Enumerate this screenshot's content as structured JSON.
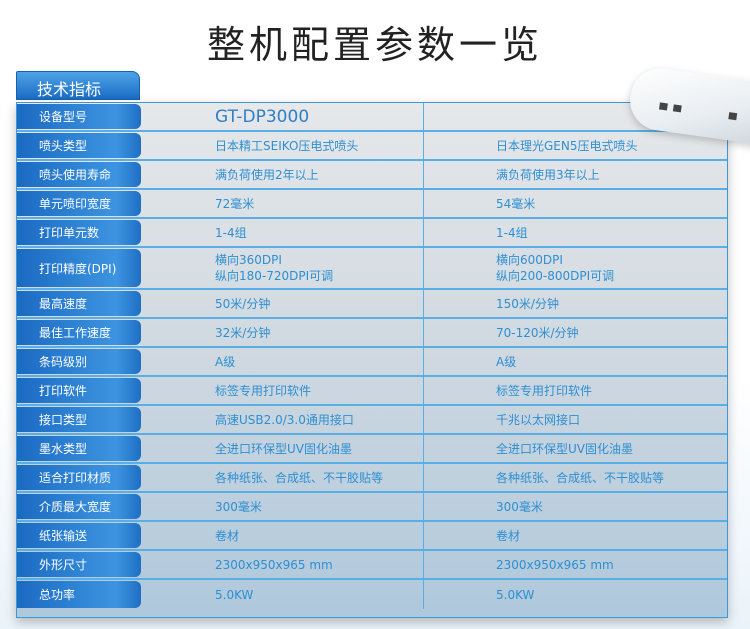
{
  "title": "整机配置参数一览",
  "header": "技术指标",
  "rows": [
    {
      "label": "设备型号",
      "c1": "GT-DP3000",
      "c2": ""
    },
    {
      "label": "喷头类型",
      "c1": "日本精工SEIKO压电式喷头",
      "c2": "日本理光GEN5压电式喷头"
    },
    {
      "label": "喷头使用寿命",
      "c1": "满负荷使用2年以上",
      "c2": "满负荷使用3年以上"
    },
    {
      "label": "单元喷印宽度",
      "c1": "72毫米",
      "c2": "54毫米"
    },
    {
      "label": "打印单元数",
      "c1": "1-4组",
      "c2": "1-4组"
    },
    {
      "label": "打印精度(DPI)",
      "c1": "横向360DPI",
      "c1b": "纵向180-720DPI可调",
      "c2": "横向600DPI",
      "c2b": "纵向200-800DPI可调"
    },
    {
      "label": "最高速度",
      "c1": "50米/分钟",
      "c2": "150米/分钟"
    },
    {
      "label": "最佳工作速度",
      "c1": "32米/分钟",
      "c2": "70-120米/分钟"
    },
    {
      "label": "条码级别",
      "c1": "A级",
      "c2": "A级"
    },
    {
      "label": "打印软件",
      "c1": "标签专用打印软件",
      "c2": "标签专用打印软件"
    },
    {
      "label": "接口类型",
      "c1": "高速USB2.0/3.0通用接口",
      "c2": "千兆以太网接口"
    },
    {
      "label": "墨水类型",
      "c1": "全进口环保型UV固化油墨",
      "c2": "全进口环保型UV固化油墨"
    },
    {
      "label": "适合打印材质",
      "c1": "各种纸张、合成纸、不干胶贴等",
      "c2": "各种纸张、合成纸、不干胶贴等"
    },
    {
      "label": "介质最大宽度",
      "c1": "300毫米",
      "c2": "300毫米"
    },
    {
      "label": "纸张输送",
      "c1": "卷材",
      "c2": "卷材"
    },
    {
      "label": "外形尺寸",
      "c1": "2300x950x965 mm",
      "c2": "2300x950x965 mm"
    },
    {
      "label": "总功率",
      "c1": "5.0KW",
      "c2": "5.0KW"
    }
  ]
}
